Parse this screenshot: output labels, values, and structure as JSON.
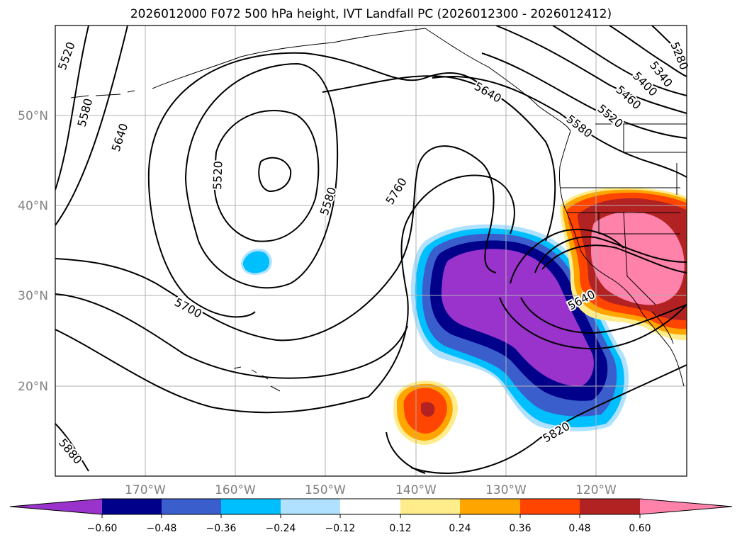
{
  "title": "2026012000 F072 500 hPa height, IVT Landfall PC (2026012300 - 2026012412)",
  "map": {
    "lon_labels": [
      "170°W",
      "160°W",
      "150°W",
      "140°W",
      "130°W",
      "120°W"
    ],
    "lat_labels": [
      "50°N",
      "40°N",
      "30°N",
      "20°N"
    ],
    "contour_labels": [
      {
        "text": "5520"
      },
      {
        "text": "5580"
      },
      {
        "text": "5640"
      },
      {
        "text": "5520"
      },
      {
        "text": "5580"
      },
      {
        "text": "5760"
      },
      {
        "text": "5700"
      },
      {
        "text": "5640"
      },
      {
        "text": "5580"
      },
      {
        "text": "5520"
      },
      {
        "text": "5460"
      },
      {
        "text": "5400"
      },
      {
        "text": "5340"
      },
      {
        "text": "5280"
      },
      {
        "text": "5640"
      },
      {
        "text": "5820"
      },
      {
        "text": "5880"
      }
    ]
  },
  "colorbar": {
    "ticks": [
      "−0.60",
      "−0.48",
      "−0.36",
      "−0.24",
      "−0.12",
      "0.12",
      "0.24",
      "0.36",
      "0.48",
      "0.60"
    ],
    "colors": [
      "#9933cc",
      "#00008b",
      "#3a5fcd",
      "#00bfff",
      "#b0e2ff",
      "#ffffff",
      "#ffec8b",
      "#ffa500",
      "#ff4500",
      "#b22222",
      "#ff82ab"
    ]
  }
}
